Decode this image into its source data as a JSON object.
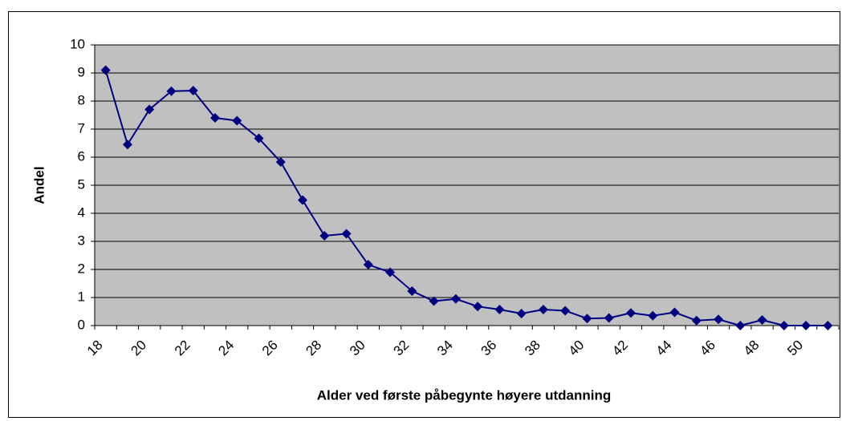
{
  "chart_data": {
    "type": "line",
    "xlabel": "Alder ved første påbegynte høyere utdanning",
    "ylabel": "Andel",
    "categories": [
      "18",
      null,
      "20",
      null,
      "22",
      null,
      "24",
      null,
      "26",
      null,
      "28",
      null,
      "30",
      null,
      "32",
      null,
      "34",
      null,
      "36",
      null,
      "38",
      null,
      "40",
      null,
      "42",
      null,
      "44",
      null,
      "46",
      null,
      "48",
      null,
      "50",
      null
    ],
    "series": [
      {
        "name": "Andel",
        "color": "#000080",
        "values": [
          9.1,
          6.45,
          7.7,
          8.35,
          8.37,
          7.4,
          7.3,
          6.67,
          5.83,
          4.47,
          3.2,
          3.27,
          2.17,
          1.9,
          1.23,
          0.87,
          0.95,
          0.68,
          0.57,
          0.43,
          0.57,
          0.53,
          0.25,
          0.27,
          0.45,
          0.35,
          0.47,
          0.18,
          0.22,
          0,
          0.2,
          0,
          0,
          0
        ]
      }
    ],
    "ylim": [
      0,
      10
    ],
    "yticks": [
      0,
      1,
      2,
      3,
      4,
      5,
      6,
      7,
      8,
      9,
      10
    ],
    "grid": true,
    "plot_background": "#c0c0c0"
  }
}
